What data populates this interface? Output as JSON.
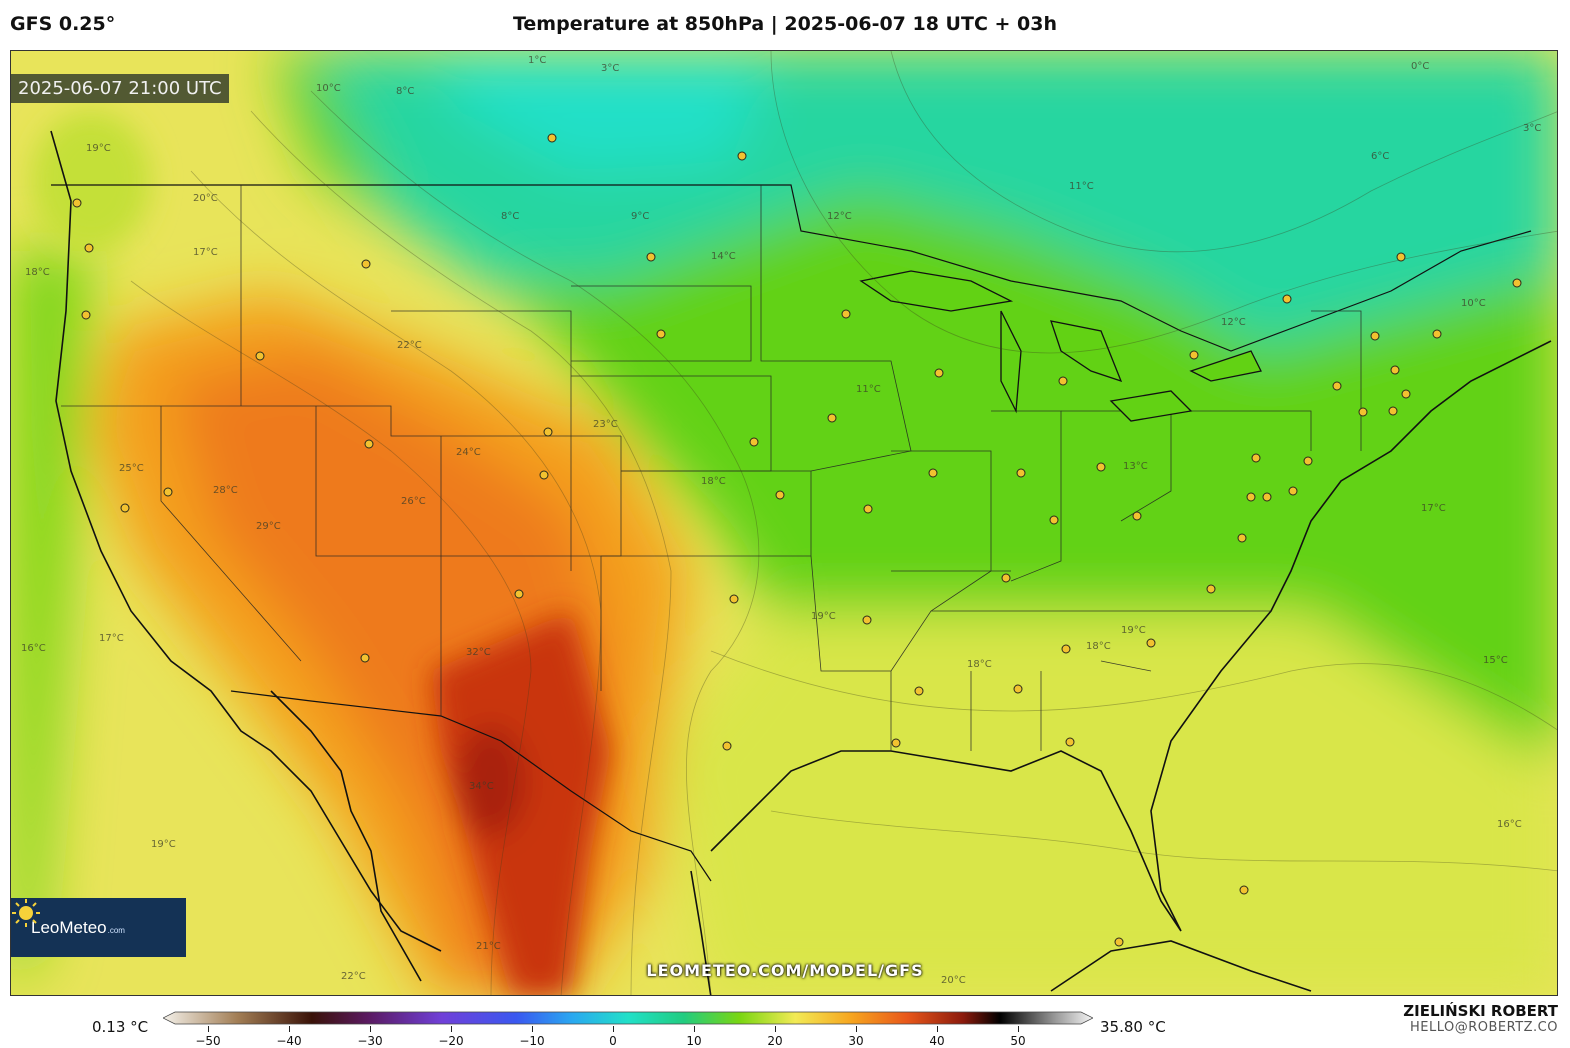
{
  "header": {
    "model": "GFS 0.25°",
    "title": "Temperature at 850hPa | 2025-06-07 18 UTC + 03h"
  },
  "map": {
    "valid_time": "2025-06-07 21:00 UTC",
    "logo_text": "LeoMeteo",
    "logo_suffix": ".com",
    "watermark": "LEOMETEO.COM/MODEL/GFS",
    "isotherm_labels": [
      "1°C",
      "3°C",
      "0°C",
      "8°C",
      "10°C",
      "19°C",
      "20°C",
      "17°C",
      "18°C",
      "22°C",
      "8°C",
      "9°C",
      "14°C",
      "12°C",
      "11°C",
      "6°C",
      "3°C",
      "12°C",
      "10°C",
      "11°C",
      "25°C",
      "28°C",
      "29°C",
      "23°C",
      "24°C",
      "26°C",
      "32°C",
      "34°C",
      "18°C",
      "19°C",
      "17°C",
      "16°C",
      "22°C",
      "21°C",
      "19°C",
      "18°C",
      "19°C",
      "18°C",
      "17°C",
      "16°C",
      "13°C",
      "15°C",
      "20°C"
    ]
  },
  "colorbar": {
    "min_label": "0.13 °C",
    "max_label": "35.80 °C",
    "ticks": [
      "−50",
      "−40",
      "−30",
      "−20",
      "−10",
      "0",
      "10",
      "20",
      "30",
      "40",
      "50"
    ],
    "colors": [
      "#f4f1ea",
      "#8a6b48",
      "#3a1208",
      "#5a1a60",
      "#7040d8",
      "#3a58f0",
      "#2aa8f0",
      "#22e0c8",
      "#22cc80",
      "#7ad612",
      "#f2ea55",
      "#f6a51f",
      "#e8571a",
      "#8c1a0c",
      "#000000",
      "#9a9a9a",
      "#f5f5f5"
    ]
  },
  "credits": {
    "author": "ZIELIŃSKI ROBERT",
    "email": "HELLO@ROBERTZ.CO"
  },
  "palette": {
    "cool_teal": "#22d3a0",
    "green": "#5fd10f",
    "yellow_green": "#c6e432",
    "yellow": "#f0e55a",
    "orange": "#f39a1e",
    "hot": "#c2300f"
  }
}
